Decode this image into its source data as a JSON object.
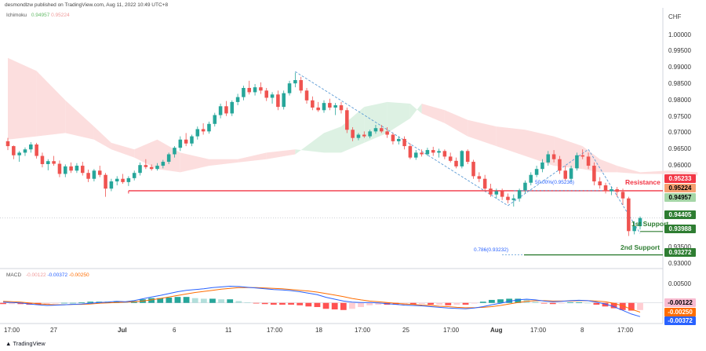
{
  "header": {
    "author_line": "desmondlzw published on TradingView.com, Aug 11, 2022 10:49 UTC+8",
    "currency": "CHF",
    "brand": "TradingView"
  },
  "indicators": {
    "ichimoku": {
      "name": "Ichimoku",
      "v1": "0.94957",
      "v2": "0.95224"
    },
    "macd": {
      "name": "MACD",
      "v1": "-0.00122",
      "v2": "-0.00372",
      "v3": "-0.00250"
    }
  },
  "colors": {
    "bull": "#26a69a",
    "bear": "#ef5350",
    "cloud_bull": "#d9f0e0",
    "cloud_bear": "#fcdada",
    "resistance": "#f23645",
    "support": "#2e7d32",
    "macd_line": "#2962ff",
    "signal_line": "#ff6d00",
    "fib": "#5b9bd5"
  },
  "chart_data": {
    "type": "candlestick",
    "price_axis": {
      "range": [
        0.9295,
        1.0035
      ],
      "ticks": [
        "1.00000",
        "0.99500",
        "0.99000",
        "0.98500",
        "0.98000",
        "0.97500",
        "0.97000",
        "0.96500",
        "0.96000",
        "0.93500",
        "0.93000"
      ]
    },
    "macd_axis": {
      "range": [
        -0.0045,
        0.0065
      ],
      "ticks": [
        "0.00500",
        "0.00000"
      ]
    },
    "time_axis": {
      "labels": [
        "17:00",
        "27",
        "Jul",
        "6",
        "11",
        "17:00",
        "18",
        "17:00",
        "25",
        "17:00",
        "Aug",
        "17:00",
        "8",
        "17:00"
      ]
    },
    "price_tags": [
      {
        "text": "0.95233",
        "value": 0.95233,
        "bg": "#f23645",
        "fg": "#ffffff"
      },
      {
        "text": "0.95224",
        "value": 0.95224,
        "bg": "#f7a072",
        "fg": "#000000"
      },
      {
        "text": "0.94957",
        "value": 0.94957,
        "bg": "#a5d6a7",
        "fg": "#000000"
      },
      {
        "text": "0.94405",
        "value": 0.94405,
        "bg": "#2e7d32",
        "fg": "#ffffff"
      },
      {
        "text": "0.93988",
        "value": 0.93988,
        "bg": "#2e7d32",
        "fg": "#ffffff"
      },
      {
        "text": "0.93272",
        "value": 0.93272,
        "bg": "#2e7d32",
        "fg": "#ffffff"
      }
    ],
    "macd_tags": [
      {
        "text": "-0.00122",
        "value": -0.00122,
        "bg": "#f8bbd0",
        "fg": "#000000"
      },
      {
        "text": "-0.00250",
        "value": -0.0025,
        "bg": "#ff6d00",
        "fg": "#ffffff"
      },
      {
        "text": "-0.00372",
        "value": -0.00372,
        "bg": "#2962ff",
        "fg": "#ffffff"
      }
    ],
    "levels": [
      {
        "name": "Resistance",
        "value": 0.95233
      },
      {
        "name": "1st Support",
        "value": 0.93988
      },
      {
        "name": "2nd Support",
        "value": 0.93272
      }
    ],
    "fib_labels": [
      "50.00%(0.95236)",
      "0.786(0.93232)"
    ],
    "candles": [
      [
        0.9675,
        0.9685,
        0.9648,
        0.966
      ],
      [
        0.966,
        0.9662,
        0.962,
        0.9632
      ],
      [
        0.9632,
        0.9645,
        0.9612,
        0.964
      ],
      [
        0.964,
        0.9656,
        0.963,
        0.965
      ],
      [
        0.965,
        0.9672,
        0.964,
        0.9665
      ],
      [
        0.9665,
        0.967,
        0.9622,
        0.963
      ],
      [
        0.963,
        0.964,
        0.9595,
        0.9605
      ],
      [
        0.9605,
        0.962,
        0.9586,
        0.9614
      ],
      [
        0.9614,
        0.963,
        0.96,
        0.9606
      ],
      [
        0.9606,
        0.9616,
        0.9565,
        0.9575
      ],
      [
        0.9575,
        0.9604,
        0.9565,
        0.9598
      ],
      [
        0.9598,
        0.961,
        0.9578,
        0.9585
      ],
      [
        0.9585,
        0.9608,
        0.9578,
        0.96
      ],
      [
        0.96,
        0.9612,
        0.957,
        0.9578
      ],
      [
        0.9578,
        0.9588,
        0.955,
        0.956
      ],
      [
        0.956,
        0.959,
        0.9552,
        0.9585
      ],
      [
        0.9585,
        0.96,
        0.9565,
        0.9572
      ],
      [
        0.9572,
        0.9578,
        0.9505,
        0.953
      ],
      [
        0.953,
        0.956,
        0.9522,
        0.9552
      ],
      [
        0.9552,
        0.9568,
        0.954,
        0.956
      ],
      [
        0.956,
        0.9575,
        0.9545,
        0.955
      ],
      [
        0.955,
        0.9568,
        0.9538,
        0.9562
      ],
      [
        0.9562,
        0.9585,
        0.9555,
        0.9578
      ],
      [
        0.9578,
        0.961,
        0.957,
        0.9602
      ],
      [
        0.9602,
        0.962,
        0.959,
        0.9596
      ],
      [
        0.9596,
        0.9604,
        0.9585,
        0.959
      ],
      [
        0.959,
        0.9608,
        0.9585,
        0.96
      ],
      [
        0.96,
        0.9618,
        0.9592,
        0.9612
      ],
      [
        0.9612,
        0.964,
        0.9605,
        0.9635
      ],
      [
        0.9635,
        0.966,
        0.9625,
        0.9655
      ],
      [
        0.9655,
        0.969,
        0.9645,
        0.968
      ],
      [
        0.968,
        0.97,
        0.966,
        0.9668
      ],
      [
        0.9668,
        0.9695,
        0.966,
        0.969
      ],
      [
        0.969,
        0.972,
        0.968,
        0.9712
      ],
      [
        0.9712,
        0.973,
        0.9695,
        0.9705
      ],
      [
        0.9705,
        0.9735,
        0.9698,
        0.9728
      ],
      [
        0.9728,
        0.9762,
        0.972,
        0.9755
      ],
      [
        0.9755,
        0.979,
        0.9745,
        0.9782
      ],
      [
        0.9782,
        0.9798,
        0.9752,
        0.976
      ],
      [
        0.976,
        0.98,
        0.9752,
        0.9795
      ],
      [
        0.9795,
        0.982,
        0.9785,
        0.981
      ],
      [
        0.981,
        0.9845,
        0.98,
        0.9838
      ],
      [
        0.9838,
        0.986,
        0.9818,
        0.9825
      ],
      [
        0.9825,
        0.985,
        0.9815,
        0.984
      ],
      [
        0.984,
        0.9855,
        0.982,
        0.983
      ],
      [
        0.983,
        0.9838,
        0.9798,
        0.9808
      ],
      [
        0.9808,
        0.9825,
        0.979,
        0.9818
      ],
      [
        0.9818,
        0.983,
        0.977,
        0.978
      ],
      [
        0.978,
        0.983,
        0.9772,
        0.9822
      ],
      [
        0.9822,
        0.986,
        0.9815,
        0.9852
      ],
      [
        0.9852,
        0.9885,
        0.984,
        0.9862
      ],
      [
        0.9862,
        0.9872,
        0.9822,
        0.983
      ],
      [
        0.983,
        0.9838,
        0.979,
        0.98
      ],
      [
        0.98,
        0.9812,
        0.977,
        0.9778
      ],
      [
        0.9778,
        0.9795,
        0.9765,
        0.977
      ],
      [
        0.977,
        0.98,
        0.9762,
        0.9792
      ],
      [
        0.9792,
        0.9805,
        0.977,
        0.9778
      ],
      [
        0.9778,
        0.9792,
        0.9755,
        0.9785
      ],
      [
        0.9785,
        0.9795,
        0.976,
        0.977
      ],
      [
        0.977,
        0.9778,
        0.97,
        0.971
      ],
      [
        0.971,
        0.9718,
        0.9675,
        0.9685
      ],
      [
        0.9685,
        0.97,
        0.9678,
        0.9695
      ],
      [
        0.9695,
        0.9705,
        0.9685,
        0.969
      ],
      [
        0.969,
        0.971,
        0.9684,
        0.9705
      ],
      [
        0.9705,
        0.9725,
        0.9698,
        0.9715
      ],
      [
        0.9715,
        0.9725,
        0.97,
        0.9705
      ],
      [
        0.9705,
        0.9718,
        0.9685,
        0.9695
      ],
      [
        0.9695,
        0.97,
        0.9665,
        0.9675
      ],
      [
        0.9675,
        0.969,
        0.9665,
        0.9682
      ],
      [
        0.9682,
        0.969,
        0.965,
        0.966
      ],
      [
        0.966,
        0.9668,
        0.962,
        0.9625
      ],
      [
        0.9625,
        0.9648,
        0.9618,
        0.964
      ],
      [
        0.964,
        0.965,
        0.9628,
        0.9635
      ],
      [
        0.9635,
        0.9655,
        0.963,
        0.9648
      ],
      [
        0.9648,
        0.9658,
        0.963,
        0.964
      ],
      [
        0.964,
        0.9652,
        0.9625,
        0.9645
      ],
      [
        0.9645,
        0.965,
        0.962,
        0.9628
      ],
      [
        0.9628,
        0.964,
        0.961,
        0.9615
      ],
      [
        0.9615,
        0.9625,
        0.9592,
        0.9598
      ],
      [
        0.9598,
        0.9648,
        0.9592,
        0.9645
      ],
      [
        0.9645,
        0.965,
        0.9605,
        0.9612
      ],
      [
        0.9612,
        0.9618,
        0.956,
        0.9568
      ],
      [
        0.9568,
        0.958,
        0.955,
        0.956
      ],
      [
        0.956,
        0.9572,
        0.952,
        0.953
      ],
      [
        0.953,
        0.9545,
        0.9505,
        0.9512
      ],
      [
        0.9512,
        0.953,
        0.95,
        0.9522
      ],
      [
        0.9522,
        0.953,
        0.9495,
        0.9505
      ],
      [
        0.9505,
        0.9515,
        0.9485,
        0.9495
      ],
      [
        0.9495,
        0.9512,
        0.9475,
        0.95
      ],
      [
        0.95,
        0.953,
        0.949,
        0.9525
      ],
      [
        0.9525,
        0.9555,
        0.9515,
        0.9548
      ],
      [
        0.9548,
        0.958,
        0.954,
        0.9572
      ],
      [
        0.9572,
        0.96,
        0.9565,
        0.959
      ],
      [
        0.959,
        0.962,
        0.958,
        0.961
      ],
      [
        0.961,
        0.9645,
        0.96,
        0.9635
      ],
      [
        0.9635,
        0.9648,
        0.961,
        0.962
      ],
      [
        0.962,
        0.963,
        0.9575,
        0.9585
      ],
      [
        0.9585,
        0.96,
        0.9555,
        0.956
      ],
      [
        0.956,
        0.96,
        0.9552,
        0.9592
      ],
      [
        0.9592,
        0.964,
        0.9585,
        0.9632
      ],
      [
        0.9632,
        0.965,
        0.962,
        0.9628
      ],
      [
        0.9628,
        0.964,
        0.959,
        0.96
      ],
      [
        0.96,
        0.961,
        0.954,
        0.9552
      ],
      [
        0.9552,
        0.9565,
        0.953,
        0.954
      ],
      [
        0.954,
        0.9548,
        0.9515,
        0.9522
      ],
      [
        0.9522,
        0.9535,
        0.951,
        0.9528
      ],
      [
        0.9528,
        0.9535,
        0.9505,
        0.952
      ],
      [
        0.952,
        0.953,
        0.948,
        0.95
      ],
      [
        0.95,
        0.9505,
        0.9385,
        0.94
      ],
      [
        0.94,
        0.943,
        0.939,
        0.9415
      ],
      [
        0.9415,
        0.9445,
        0.9405,
        0.944
      ]
    ],
    "cloud": [
      [
        0,
        0.993,
        0.968
      ],
      [
        5,
        0.989,
        0.969
      ],
      [
        10,
        0.98,
        0.97
      ],
      [
        15,
        0.972,
        0.968
      ],
      [
        18,
        0.967,
        0.965
      ],
      [
        22,
        0.965,
        0.9625
      ],
      [
        26,
        0.968,
        0.959
      ],
      [
        30,
        0.964,
        0.958
      ],
      [
        35,
        0.962,
        0.96
      ],
      [
        40,
        0.962,
        0.961
      ],
      [
        45,
        0.964,
        0.962
      ],
      [
        50,
        0.965,
        0.9635
      ],
      [
        55,
        0.964,
        0.97
      ],
      [
        58,
        0.964,
        0.972
      ],
      [
        62,
        0.967,
        0.978
      ],
      [
        66,
        0.97,
        0.9795
      ],
      [
        70,
        0.9745,
        0.979
      ],
      [
        72,
        0.979,
        0.976
      ],
      [
        76,
        0.977,
        0.973
      ],
      [
        80,
        0.974,
        0.969
      ],
      [
        85,
        0.972,
        0.966
      ],
      [
        90,
        0.971,
        0.963
      ],
      [
        95,
        0.969,
        0.96
      ],
      [
        100,
        0.966,
        0.959
      ],
      [
        103,
        0.962,
        0.958
      ],
      [
        106,
        0.96,
        0.958
      ],
      [
        110,
        0.958,
        0.9575
      ],
      [
        115,
        0.9585,
        0.9575
      ],
      [
        120,
        0.958,
        0.957
      ]
    ],
    "macd": {
      "macd_line": [
        0.0002,
        0.0001,
        0.0,
        -0.0003,
        -0.0005,
        -0.0007,
        -0.0006,
        -0.0005,
        -0.0004,
        -0.0003,
        -0.0001,
        0.0001,
        0.0002,
        0.0004,
        0.0003,
        0.0006,
        0.0011,
        0.0016,
        0.002,
        0.0025,
        0.003,
        0.0034,
        0.0036,
        0.0038,
        0.0041,
        0.0043,
        0.0045,
        0.0044,
        0.0042,
        0.004,
        0.0038,
        0.0036,
        0.0035,
        0.0033,
        0.003,
        0.0026,
        0.0022,
        0.0015,
        0.001,
        0.0005,
        0.0002,
        0.0001,
        0.0001,
        0.0,
        -0.0002,
        -0.0004,
        -0.0006,
        -0.0007,
        -0.0008,
        -0.001,
        -0.0012,
        -0.0014,
        -0.0015,
        -0.0016,
        -0.0014,
        -0.001,
        -0.0005,
        -0.0001,
        0.0004,
        0.0008,
        0.001,
        0.0008,
        0.0005,
        0.0003,
        0.0004,
        0.0006,
        0.0007,
        0.0006,
        0.0002,
        -0.0003,
        -0.001,
        -0.002,
        -0.003,
        -0.0037
      ],
      "signal_line": [
        0.0004,
        0.0003,
        0.0002,
        0.0,
        -0.0002,
        -0.0004,
        -0.0005,
        -0.0005,
        -0.0004,
        -0.0004,
        -0.0003,
        -0.0001,
        0.0,
        0.0001,
        0.0002,
        0.0003,
        0.0005,
        0.0008,
        0.0012,
        0.0016,
        0.002,
        0.0024,
        0.0028,
        0.0031,
        0.0034,
        0.0037,
        0.0039,
        0.0041,
        0.0041,
        0.0041,
        0.004,
        0.0039,
        0.0038,
        0.0036,
        0.0034,
        0.0032,
        0.0029,
        0.0025,
        0.0021,
        0.0017,
        0.0012,
        0.0008,
        0.0005,
        0.0003,
        0.0001,
        -0.0001,
        -0.0003,
        -0.0004,
        -0.0006,
        -0.0007,
        -0.0009,
        -0.001,
        -0.0012,
        -0.0013,
        -0.0013,
        -0.0012,
        -0.001,
        -0.0007,
        -0.0003,
        0.0001,
        0.0004,
        0.0006,
        0.0006,
        0.0005,
        0.0005,
        0.0005,
        0.0006,
        0.0006,
        0.0005,
        0.0003,
        -0.0001,
        -0.0008,
        -0.0017,
        -0.0025
      ]
    }
  }
}
